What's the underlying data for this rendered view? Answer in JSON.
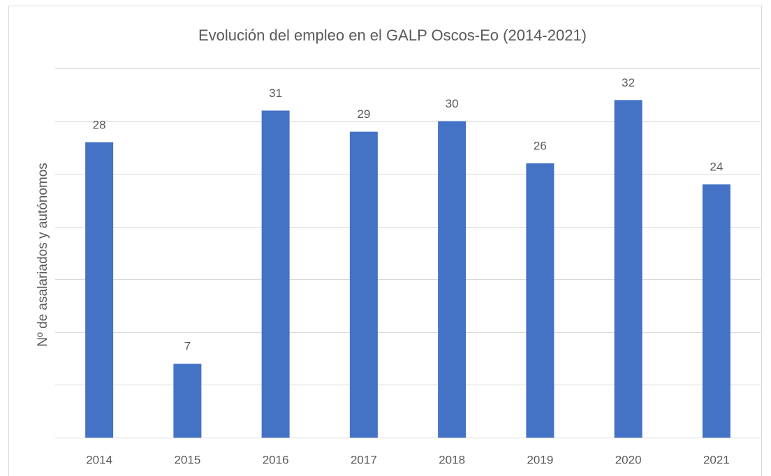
{
  "chart_data": {
    "type": "bar",
    "title": "Evolución del empleo en el GALP Oscos-Eo (2014-2021)",
    "y_label": "Nº de asalariados y autónomos",
    "categories": [
      "2014",
      "2015",
      "2016",
      "2017",
      "2018",
      "2019",
      "2020",
      "2021"
    ],
    "values": [
      28,
      7,
      31,
      29,
      30,
      26,
      32,
      24
    ],
    "color": "#4472c4",
    "ylim": [
      0,
      35
    ],
    "yticks": [
      0,
      5,
      10,
      15,
      20,
      25,
      30,
      35
    ],
    "grid": true
  }
}
